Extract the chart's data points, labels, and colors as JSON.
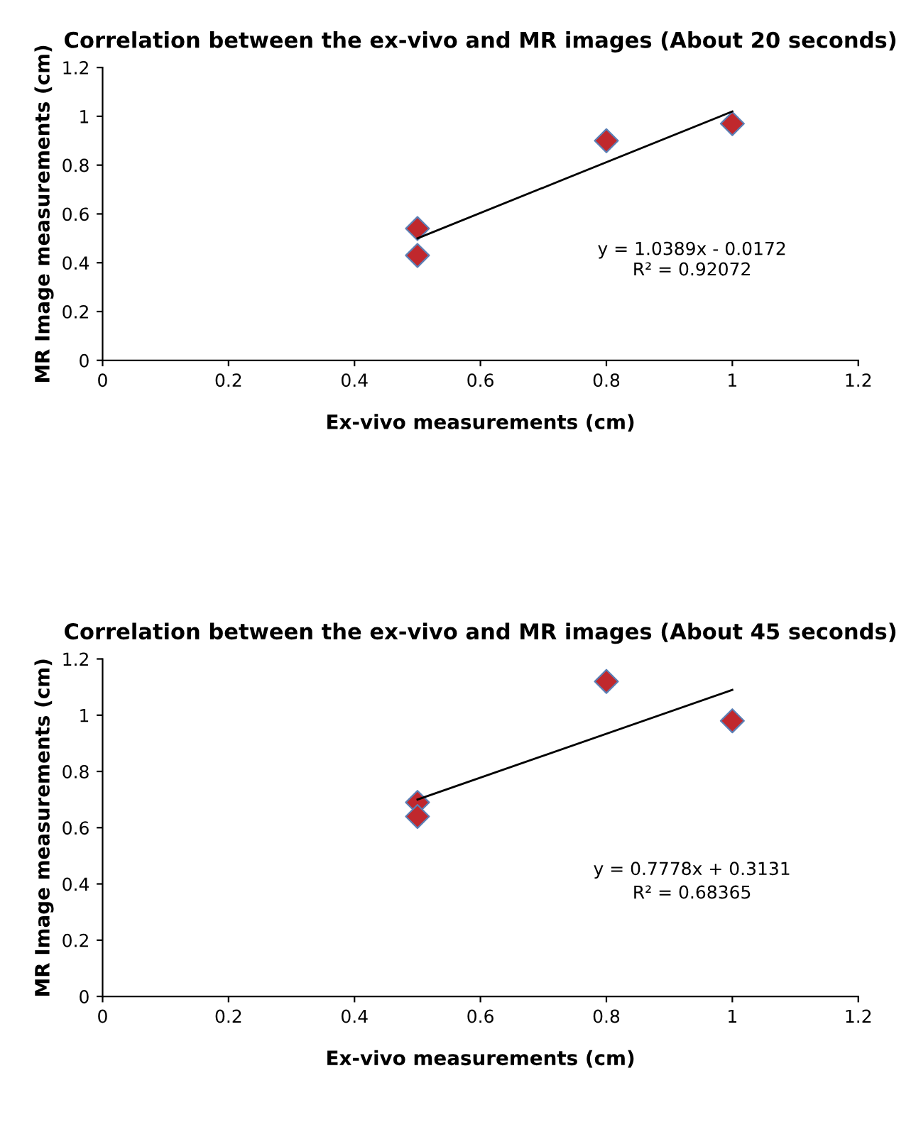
{
  "chart_data": [
    {
      "type": "scatter",
      "title": "Correlation between the ex-vivo and MR images (About 20 seconds)",
      "xlabel": "Ex-vivo measurements (cm)",
      "ylabel": "MR Image measurements (cm)",
      "xlim": [
        0,
        1.2
      ],
      "xticks": [
        0,
        0.2,
        0.4,
        0.6,
        0.8,
        1,
        1.2
      ],
      "ylim": [
        0,
        1.2
      ],
      "yticks": [
        0,
        0.2,
        0.4,
        0.6,
        0.8,
        1,
        1.2
      ],
      "annotations": [
        "y = 1.0389x - 0.0172",
        "R² = 0.92072"
      ],
      "series": [
        {
          "marker": "diamond",
          "color": "#c0282d",
          "x": [
            0.5,
            0.5,
            0.8,
            1
          ],
          "values": [
            0.54,
            0.43,
            0.9,
            0.97
          ]
        },
        {
          "type": "line",
          "marker": "none",
          "color": "#000000",
          "x": [
            0.5,
            1
          ],
          "values": [
            0.5,
            1.02
          ]
        }
      ]
    },
    {
      "type": "scatter",
      "title": "Correlation between the ex-vivo and MR images (About 45 seconds)",
      "xlabel": "Ex-vivo measurements (cm)",
      "ylabel": "MR Image measurements (cm)",
      "xlim": [
        0,
        1.2
      ],
      "xticks": [
        0,
        0.2,
        0.4,
        0.6,
        0.8,
        1,
        1.2
      ],
      "ylim": [
        0,
        1.2
      ],
      "yticks": [
        0,
        0.2,
        0.4,
        0.6,
        0.8,
        1,
        1.2
      ],
      "annotations": [
        "y = 0.7778x + 0.3131",
        "R² = 0.68365"
      ],
      "series": [
        {
          "marker": "diamond",
          "color": "#c0282d",
          "x": [
            0.5,
            0.5,
            0.8,
            1
          ],
          "values": [
            0.69,
            0.64,
            1.12,
            0.98
          ]
        },
        {
          "type": "line",
          "marker": "none",
          "color": "#000000",
          "x": [
            0.5,
            1
          ],
          "values": [
            0.7,
            1.09
          ]
        }
      ]
    }
  ]
}
